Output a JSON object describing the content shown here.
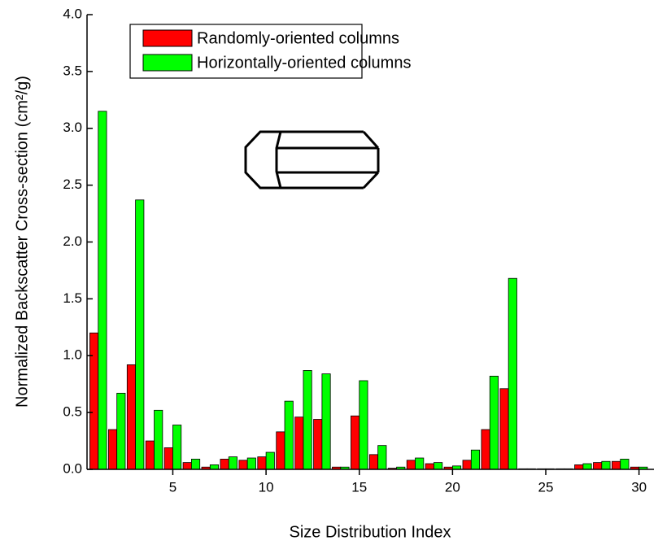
{
  "chart_data": {
    "type": "bar",
    "xlabel": "Size Distribution Index",
    "ylabel": "Normalized Backscatter Cross-section (cm²/g)",
    "x": [
      1,
      2,
      3,
      4,
      5,
      6,
      7,
      8,
      9,
      10,
      11,
      12,
      13,
      14,
      15,
      16,
      17,
      18,
      19,
      20,
      21,
      22,
      23,
      24,
      25,
      26,
      27,
      28,
      29,
      30
    ],
    "series": [
      {
        "name": "Randomly-oriented columns",
        "color": "#ff0000",
        "values": [
          1.2,
          0.35,
          0.92,
          0.25,
          0.19,
          0.06,
          0.02,
          0.09,
          0.08,
          0.11,
          0.33,
          0.46,
          0.44,
          0.02,
          0.47,
          0.13,
          0.01,
          0.08,
          0.05,
          0.02,
          0.08,
          0.35,
          0.71,
          0.005,
          0.005,
          0.005,
          0.04,
          0.06,
          0.07,
          0.02
        ]
      },
      {
        "name": "Horizontally-oriented columns",
        "color": "#00ff00",
        "values": [
          3.15,
          0.67,
          2.37,
          0.52,
          0.39,
          0.09,
          0.04,
          0.11,
          0.1,
          0.15,
          0.6,
          0.87,
          0.84,
          0.02,
          0.78,
          0.21,
          0.02,
          0.1,
          0.06,
          0.03,
          0.17,
          0.82,
          1.68,
          0.005,
          0.005,
          0.005,
          0.05,
          0.07,
          0.09,
          0.02
        ]
      }
    ],
    "xlim": [
      0.4,
      30.8
    ],
    "xticks": [
      5,
      10,
      15,
      20,
      25,
      30
    ],
    "ylim": [
      0,
      4.0
    ],
    "yticks": [
      {
        "value": 0,
        "label": "0.0"
      },
      0.5,
      {
        "value": 1,
        "label": "1.0"
      },
      1.5,
      {
        "value": 2,
        "label": "2.0"
      },
      2.5,
      {
        "value": 3,
        "label": "3.0"
      },
      3.5,
      {
        "value": 4,
        "label": "4.0"
      }
    ],
    "legend": "upper left"
  }
}
